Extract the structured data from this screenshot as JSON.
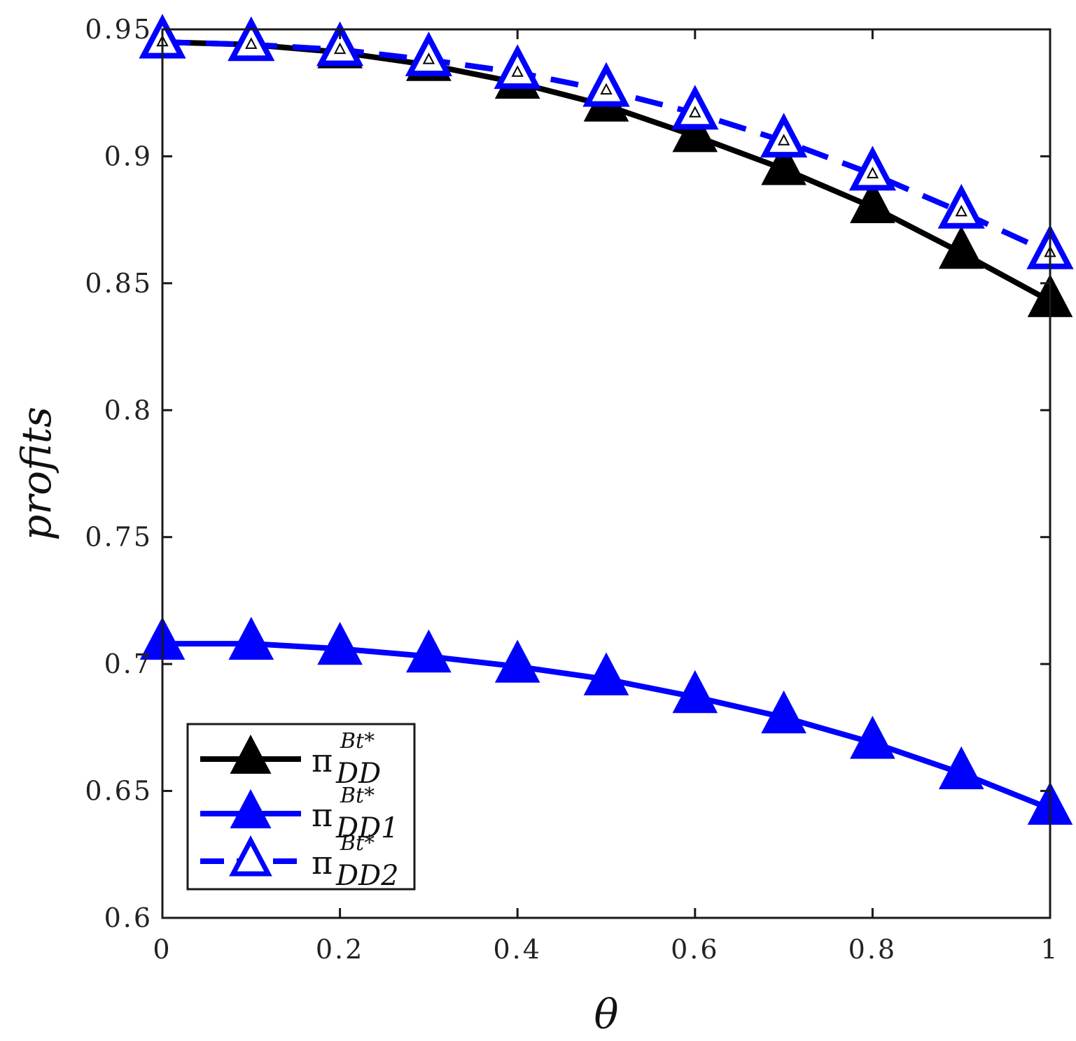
{
  "chart_data": {
    "type": "line",
    "xlabel": "θ",
    "ylabel": "profits",
    "xlim": [
      0,
      1
    ],
    "ylim": [
      0.6,
      0.95
    ],
    "x_ticks": [
      "0",
      "0.2",
      "0.4",
      "0.6",
      "0.8",
      "1"
    ],
    "y_ticks": [
      "0.6",
      "0.65",
      "0.7",
      "0.75",
      "0.8",
      "0.85",
      "0.9",
      "0.95"
    ],
    "grid": false,
    "legend_position": "bottom-left",
    "x": [
      0,
      0.1,
      0.2,
      0.3,
      0.4,
      0.5,
      0.6,
      0.7,
      0.8,
      0.9,
      1.0
    ],
    "series": [
      {
        "name": "π_DD^Bt*",
        "symbol": "π",
        "sup": "Bt*",
        "sub": "DD",
        "color": "#000000",
        "line": "solid",
        "marker": "filled-triangle",
        "values": [
          0.945,
          0.944,
          0.941,
          0.936,
          0.929,
          0.92,
          0.908,
          0.895,
          0.88,
          0.862,
          0.843
        ]
      },
      {
        "name": "π_DD1^Bt*",
        "symbol": "π",
        "sup": "Bt*",
        "sub": "DD1",
        "color": "#0000ff",
        "line": "solid",
        "marker": "filled-triangle",
        "values": [
          0.708,
          0.708,
          0.706,
          0.703,
          0.699,
          0.694,
          0.687,
          0.679,
          0.669,
          0.657,
          0.643
        ]
      },
      {
        "name": "π_DD2^Bt*",
        "symbol": "π",
        "sup": "Bt*",
        "sub": "DD2",
        "color": "#0000ff",
        "line": "dashed",
        "marker": "hollow-triangle",
        "values": [
          0.945,
          0.944,
          0.942,
          0.938,
          0.933,
          0.926,
          0.917,
          0.906,
          0.893,
          0.878,
          0.862
        ]
      }
    ]
  }
}
